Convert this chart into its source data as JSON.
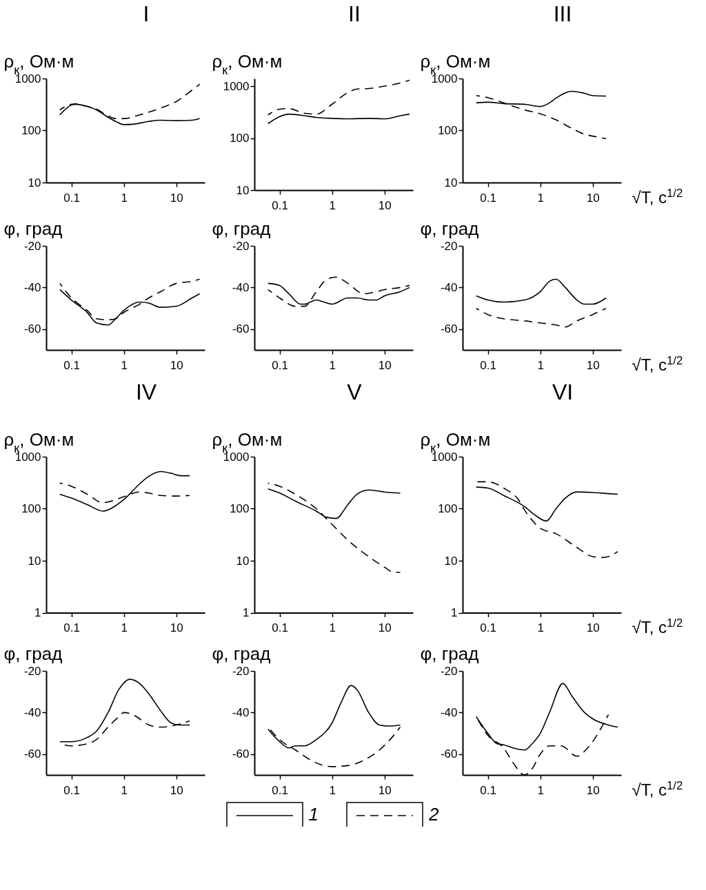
{
  "chart_data": [
    {
      "type": "line",
      "title": "I",
      "ylabel": "ρ$_{к}$, Ом·м",
      "log": "xy",
      "xlim": [
        0.033,
        35
      ],
      "xticks": [
        0.1,
        1,
        10
      ],
      "ylim": [
        10,
        1000
      ],
      "yticks": [
        10,
        100,
        1000
      ],
      "series": [
        {
          "color": "#000000",
          "line_style": "solid",
          "x": [
            0.06,
            0.1,
            0.12,
            0.2,
            0.3,
            0.5,
            0.7,
            1,
            1.5,
            3,
            5,
            10,
            20,
            28
          ],
          "values": [
            200,
            310,
            320,
            290,
            250,
            180,
            150,
            130,
            132,
            150,
            158,
            155,
            158,
            170
          ]
        },
        {
          "color": "#000000",
          "line_style": "dashed",
          "x": [
            0.06,
            0.1,
            0.12,
            0.2,
            0.3,
            0.5,
            0.7,
            1,
            2,
            5,
            10,
            20,
            28
          ],
          "values": [
            250,
            320,
            325,
            290,
            260,
            190,
            170,
            170,
            200,
            270,
            360,
            600,
            780
          ]
        }
      ]
    },
    {
      "type": "line",
      "title": "II",
      "ylabel": "ρ$_{к}$, Ом·м",
      "log": "xy",
      "xlim": [
        0.033,
        35
      ],
      "xticks": [
        0.1,
        1,
        10
      ],
      "ylim": [
        10,
        1400
      ],
      "yticks": [
        10,
        100,
        1000
      ],
      "series": [
        {
          "color": "#000000",
          "line_style": "solid",
          "x": [
            0.06,
            0.1,
            0.15,
            0.3,
            0.5,
            1,
            2,
            5,
            10,
            20,
            30
          ],
          "values": [
            190,
            260,
            290,
            270,
            250,
            240,
            235,
            240,
            235,
            270,
            290
          ]
        },
        {
          "color": "#000000",
          "line_style": "dashed",
          "x": [
            0.06,
            0.1,
            0.15,
            0.3,
            0.5,
            1,
            2,
            3,
            5,
            10,
            20,
            30
          ],
          "values": [
            280,
            360,
            370,
            300,
            290,
            450,
            750,
            880,
            900,
            1000,
            1150,
            1300
          ]
        }
      ]
    },
    {
      "type": "line",
      "title": "III",
      "ylabel": "ρ$_{к}$, Ом·м",
      "xlabel": "√T, с$^{1/2}$",
      "log": "xy",
      "xlim": [
        0.033,
        35
      ],
      "xticks": [
        0.1,
        1,
        10
      ],
      "ylim": [
        10,
        1000
      ],
      "yticks": [
        10,
        100,
        1000
      ],
      "series": [
        {
          "color": "#000000",
          "line_style": "solid",
          "x": [
            0.06,
            0.1,
            0.2,
            0.5,
            1,
            1.5,
            2,
            4,
            7,
            10,
            18
          ],
          "values": [
            340,
            350,
            330,
            320,
            290,
            340,
            420,
            570,
            520,
            470,
            460
          ]
        },
        {
          "color": "#000000",
          "line_style": "dashed",
          "x": [
            0.06,
            0.1,
            0.2,
            0.5,
            1,
            2,
            4,
            7,
            10,
            18
          ],
          "values": [
            470,
            430,
            340,
            250,
            210,
            160,
            110,
            85,
            78,
            70
          ]
        }
      ]
    },
    {
      "type": "line",
      "ylabel": "φ, град",
      "log": "x",
      "xlim": [
        0.033,
        35
      ],
      "xticks": [
        0.1,
        1,
        10
      ],
      "ylim": [
        -70,
        -20
      ],
      "yticks": [
        -20,
        -40,
        -60
      ],
      "series": [
        {
          "color": "#000000",
          "line_style": "solid",
          "x": [
            0.06,
            0.1,
            0.2,
            0.3,
            0.5,
            0.7,
            1,
            2,
            3,
            5,
            10,
            20,
            28
          ],
          "values": [
            -41,
            -46,
            -52,
            -57,
            -58,
            -55,
            -51,
            -47,
            -47.5,
            -49.5,
            -49,
            -45,
            -43
          ]
        },
        {
          "color": "#000000",
          "line_style": "dashed",
          "x": [
            0.06,
            0.1,
            0.2,
            0.3,
            0.5,
            0.7,
            1,
            2,
            3,
            5,
            10,
            20,
            28
          ],
          "values": [
            -38,
            -45,
            -51,
            -55,
            -55.5,
            -55,
            -52,
            -48,
            -45,
            -42,
            -38,
            -37,
            -36
          ]
        }
      ]
    },
    {
      "type": "line",
      "ylabel": "φ, град",
      "log": "x",
      "xlim": [
        0.033,
        35
      ],
      "xticks": [
        0.1,
        1,
        10
      ],
      "ylim": [
        -70,
        -20
      ],
      "yticks": [
        -20,
        -40,
        -60
      ],
      "series": [
        {
          "color": "#000000",
          "line_style": "solid",
          "x": [
            0.06,
            0.1,
            0.15,
            0.25,
            0.3,
            0.5,
            0.7,
            1,
            2,
            3,
            5,
            7,
            10,
            20,
            30
          ],
          "values": [
            -38,
            -39,
            -43,
            -48,
            -48,
            -46,
            -47,
            -48,
            -45,
            -45,
            -46,
            -46,
            -44,
            -42,
            -40
          ]
        },
        {
          "color": "#000000",
          "line_style": "dashed",
          "x": [
            0.06,
            0.1,
            0.2,
            0.3,
            0.5,
            0.8,
            1.2,
            2,
            4,
            7,
            10,
            20,
            30
          ],
          "values": [
            -41,
            -45,
            -49,
            -49,
            -42,
            -36,
            -35,
            -38,
            -43,
            -42,
            -41,
            -40,
            -39
          ]
        }
      ]
    },
    {
      "type": "line",
      "ylabel": "φ, град",
      "xlabel": "√T, с$^{1/2}$",
      "log": "x",
      "xlim": [
        0.033,
        35
      ],
      "xticks": [
        0.1,
        1,
        10
      ],
      "ylim": [
        -70,
        -20
      ],
      "yticks": [
        -20,
        -40,
        -60
      ],
      "series": [
        {
          "color": "#000000",
          "line_style": "solid",
          "x": [
            0.06,
            0.1,
            0.2,
            0.5,
            1,
            1.5,
            2,
            3,
            5,
            7,
            10,
            18
          ],
          "values": [
            -44,
            -46,
            -47,
            -46,
            -42,
            -37,
            -36,
            -40,
            -46,
            -48,
            -48,
            -45
          ]
        },
        {
          "color": "#000000",
          "line_style": "dashed",
          "x": [
            0.06,
            0.1,
            0.2,
            0.5,
            1,
            2,
            3,
            5,
            10,
            18
          ],
          "values": [
            -50,
            -53,
            -55,
            -56,
            -57,
            -58,
            -59,
            -56,
            -53,
            -50
          ]
        }
      ]
    },
    {
      "type": "line",
      "title": "IV",
      "ylabel": "ρ$_{к}$, Ом·м",
      "log": "xy",
      "xlim": [
        0.033,
        35
      ],
      "xticks": [
        0.1,
        1,
        10
      ],
      "ylim": [
        1,
        1000
      ],
      "yticks": [
        1,
        10,
        100,
        1000
      ],
      "series": [
        {
          "color": "#000000",
          "line_style": "solid",
          "x": [
            0.06,
            0.1,
            0.2,
            0.4,
            0.5,
            1,
            2,
            3,
            5,
            8,
            12,
            18
          ],
          "values": [
            190,
            160,
            120,
            90,
            95,
            150,
            300,
            420,
            520,
            480,
            430,
            430
          ]
        },
        {
          "color": "#000000",
          "line_style": "dashed",
          "x": [
            0.06,
            0.1,
            0.2,
            0.4,
            0.5,
            1,
            2,
            3,
            5,
            10,
            18
          ],
          "values": [
            310,
            270,
            190,
            130,
            135,
            170,
            210,
            200,
            180,
            175,
            180
          ]
        }
      ]
    },
    {
      "type": "line",
      "title": "V",
      "ylabel": "ρ$_{к}$, Ом·м",
      "log": "xy",
      "xlim": [
        0.033,
        35
      ],
      "xticks": [
        0.1,
        1,
        10
      ],
      "ylim": [
        1,
        1000
      ],
      "yticks": [
        1,
        10,
        100,
        1000
      ],
      "series": [
        {
          "color": "#000000",
          "line_style": "solid",
          "x": [
            0.06,
            0.1,
            0.2,
            0.5,
            0.8,
            1.2,
            2,
            3,
            5,
            10,
            20
          ],
          "values": [
            240,
            200,
            140,
            90,
            68,
            65,
            120,
            190,
            230,
            210,
            200
          ]
        },
        {
          "color": "#000000",
          "line_style": "dashed",
          "x": [
            0.06,
            0.1,
            0.2,
            0.5,
            1,
            2,
            5,
            10,
            15,
            20
          ],
          "values": [
            310,
            270,
            190,
            100,
            50,
            25,
            12,
            7.5,
            6,
            6
          ]
        }
      ]
    },
    {
      "type": "line",
      "title": "VI",
      "ylabel": "ρ$_{к}$, Ом·м",
      "xlabel": "√T, с$^{1/2}$",
      "log": "xy",
      "xlim": [
        0.033,
        35
      ],
      "xticks": [
        0.1,
        1,
        10
      ],
      "ylim": [
        1,
        1000
      ],
      "yticks": [
        1,
        10,
        100,
        1000
      ],
      "series": [
        {
          "color": "#000000",
          "line_style": "solid",
          "x": [
            0.06,
            0.1,
            0.2,
            0.5,
            0.8,
            1.3,
            2,
            3,
            5,
            10,
            20,
            30
          ],
          "values": [
            260,
            250,
            180,
            110,
            75,
            58,
            100,
            160,
            210,
            205,
            195,
            190
          ]
        },
        {
          "color": "#000000",
          "line_style": "dashed",
          "x": [
            0.06,
            0.1,
            0.2,
            0.4,
            0.5,
            0.7,
            1,
            2,
            5,
            10,
            15,
            20,
            30
          ],
          "values": [
            330,
            330,
            250,
            140,
            95,
            60,
            42,
            33,
            18,
            12,
            11.5,
            12,
            15
          ]
        }
      ]
    },
    {
      "type": "line",
      "ylabel": "φ, град",
      "log": "x",
      "xlim": [
        0.033,
        35
      ],
      "xticks": [
        0.1,
        1,
        10
      ],
      "ylim": [
        -70,
        -20
      ],
      "yticks": [
        -20,
        -40,
        -60
      ],
      "series": [
        {
          "color": "#000000",
          "line_style": "solid",
          "x": [
            0.06,
            0.1,
            0.2,
            0.3,
            0.5,
            0.8,
            1.3,
            2,
            3,
            5,
            8,
            12,
            18
          ],
          "values": [
            -54,
            -54,
            -52,
            -49,
            -40,
            -29,
            -24,
            -26,
            -31,
            -39,
            -45,
            -46,
            -46
          ]
        },
        {
          "color": "#000000",
          "line_style": "dashed",
          "x": [
            0.06,
            0.1,
            0.2,
            0.3,
            0.5,
            0.8,
            1,
            1.5,
            2,
            3,
            5,
            10,
            18
          ],
          "values": [
            -55,
            -56,
            -55,
            -53,
            -47,
            -42,
            -40,
            -41,
            -43,
            -46,
            -47,
            -46,
            -44
          ]
        }
      ]
    },
    {
      "type": "line",
      "ylabel": "φ, град",
      "log": "x",
      "xlim": [
        0.033,
        35
      ],
      "xticks": [
        0.1,
        1,
        10
      ],
      "ylim": [
        -70,
        -20
      ],
      "yticks": [
        -20,
        -40,
        -60
      ],
      "legend": "bottom",
      "series": [
        {
          "name": "1",
          "color": "#000000",
          "line_style": "solid",
          "x": [
            0.06,
            0.1,
            0.15,
            0.2,
            0.3,
            0.5,
            1,
            1.5,
            2.3,
            3,
            5,
            8,
            12,
            20
          ],
          "values": [
            -48,
            -54,
            -57,
            -56,
            -56,
            -53,
            -45,
            -35,
            -27,
            -29,
            -40,
            -46,
            -46.5,
            -46
          ]
        },
        {
          "name": "2",
          "color": "#000000",
          "line_style": "dashed",
          "x": [
            0.06,
            0.1,
            0.2,
            0.4,
            0.7,
            1,
            2,
            4,
            8,
            15,
            20
          ],
          "values": [
            -47,
            -53,
            -58,
            -63,
            -65.5,
            -66,
            -65.5,
            -63,
            -58,
            -51,
            -47
          ]
        }
      ]
    },
    {
      "type": "line",
      "ylabel": "φ, град",
      "xlabel": "√T, с$^{1/2}$",
      "log": "x",
      "xlim": [
        0.033,
        35
      ],
      "xticks": [
        0.1,
        1,
        10
      ],
      "ylim": [
        -70,
        -20
      ],
      "yticks": [
        -20,
        -40,
        -60
      ],
      "series": [
        {
          "color": "#000000",
          "line_style": "solid",
          "x": [
            0.06,
            0.1,
            0.15,
            0.2,
            0.3,
            0.5,
            0.7,
            1,
            1.5,
            2.7,
            4,
            7,
            10,
            20,
            30
          ],
          "values": [
            -42,
            -50,
            -55,
            -55.5,
            -57,
            -58,
            -55,
            -50,
            -40,
            -26,
            -32,
            -40,
            -43,
            -46,
            -47
          ]
        },
        {
          "color": "#000000",
          "line_style": "dashed",
          "x": [
            0.06,
            0.1,
            0.2,
            0.3,
            0.5,
            0.7,
            1,
            1.5,
            2.5,
            5,
            8,
            20
          ],
          "values": [
            -42,
            -51,
            -57,
            -64,
            -70,
            -67,
            -60,
            -56,
            -56,
            -61,
            -57,
            -41
          ]
        }
      ]
    }
  ]
}
